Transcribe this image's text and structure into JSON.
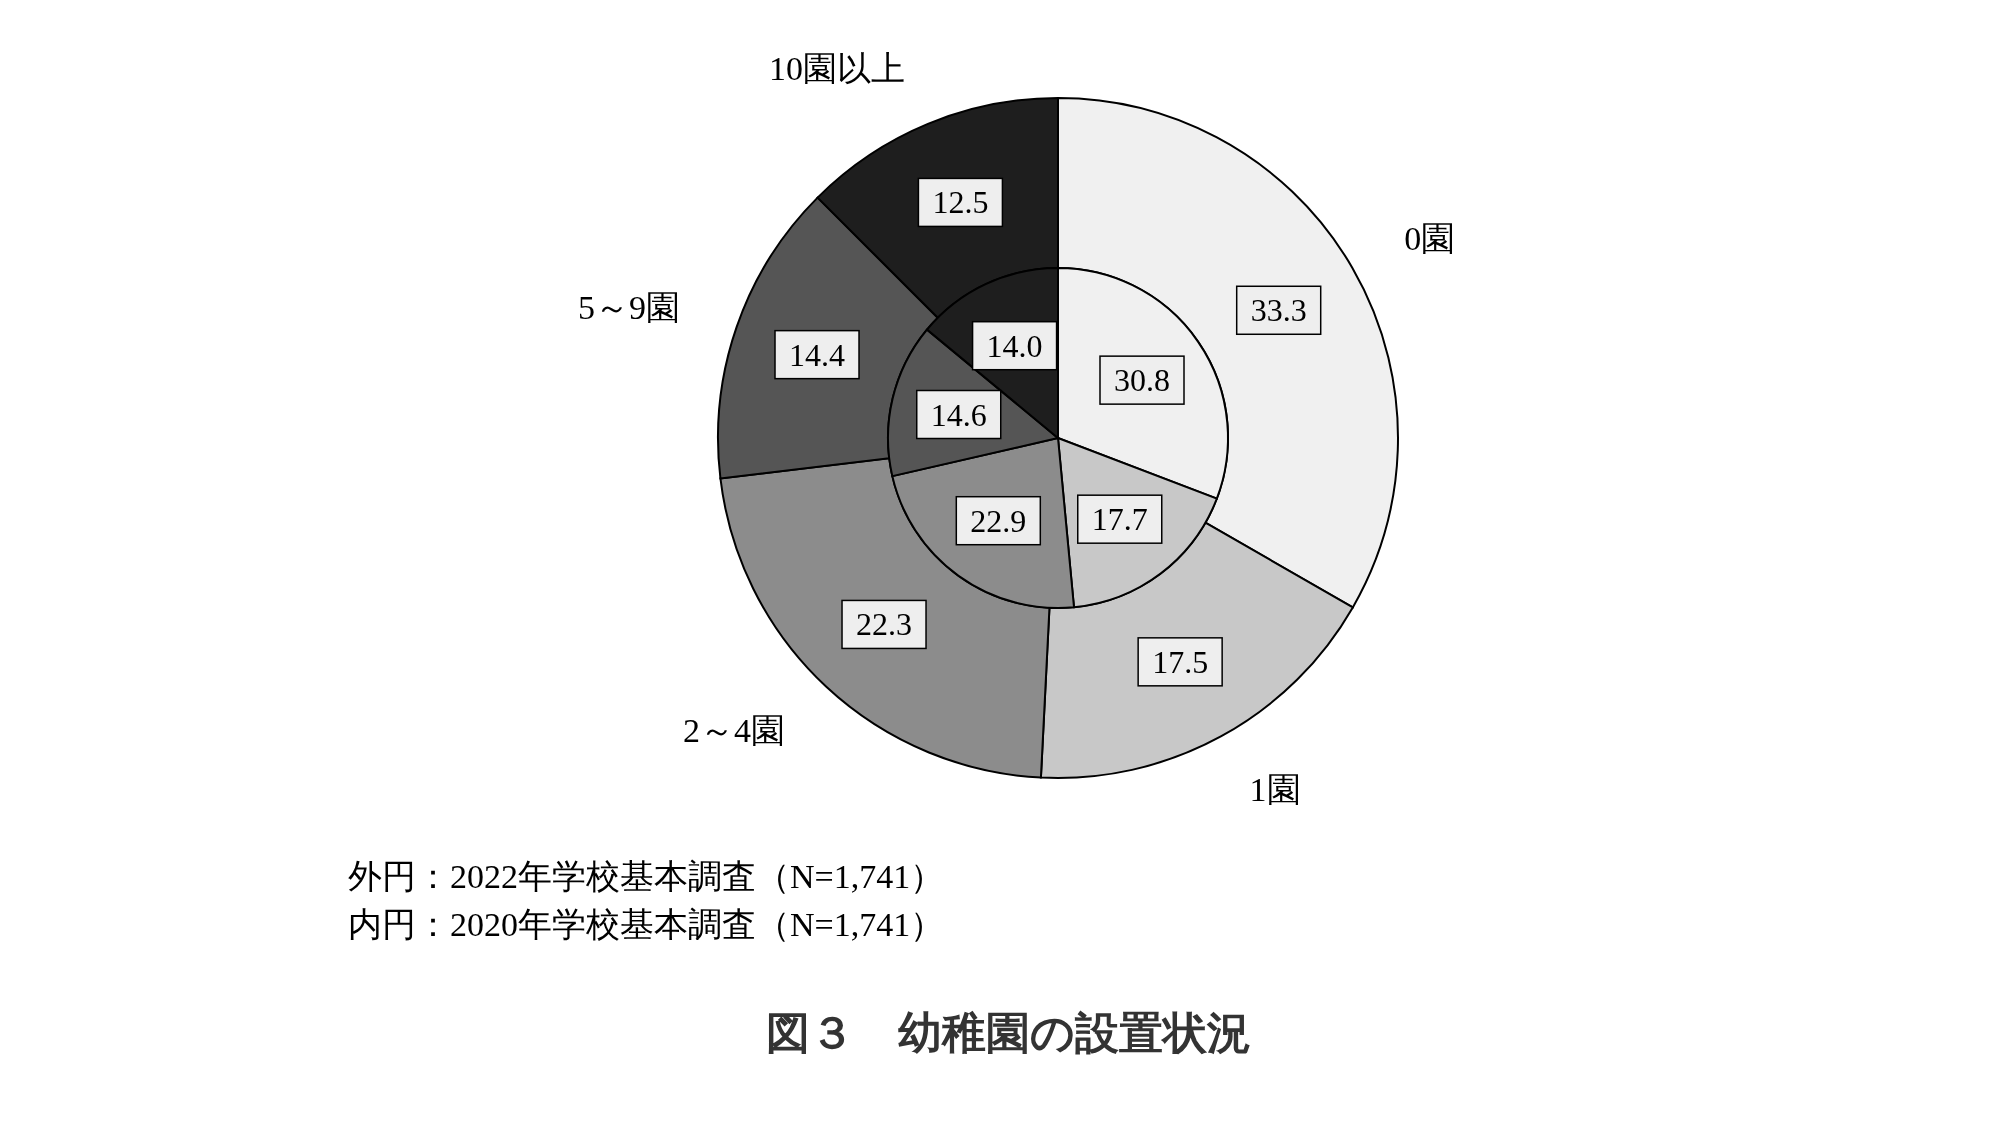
{
  "chart_data": {
    "type": "pie",
    "title": "図３　幼稚園の設置状況",
    "categories": [
      "0園",
      "1園",
      "2～4園",
      "5～9園",
      "10園以上"
    ],
    "series": [
      {
        "values": [
          33.3,
          17.5,
          22.3,
          14.4,
          12.5
        ],
        "value_labels": [
          "33.3",
          "17.5",
          "22.3",
          "14.4",
          "12.5"
        ],
        "colors": [
          "#f0f0f0",
          "#c8c8c8",
          "#8c8c8c",
          "#555555",
          "#1e1e1e"
        ]
      },
      {
        "values": [
          30.8,
          17.7,
          22.9,
          14.6,
          14.0
        ],
        "value_labels": [
          "30.8",
          "17.7",
          "22.9",
          "14.6",
          "14.0"
        ],
        "colors": [
          "#f0f0f0",
          "#c8c8c8",
          "#8c8c8c",
          "#555555",
          "#1e1e1e"
        ]
      }
    ],
    "annotations": [
      "外円：2022年学校基本調査（N=1,741）",
      "内円：2020年学校基本調査（N=1,741）"
    ]
  }
}
